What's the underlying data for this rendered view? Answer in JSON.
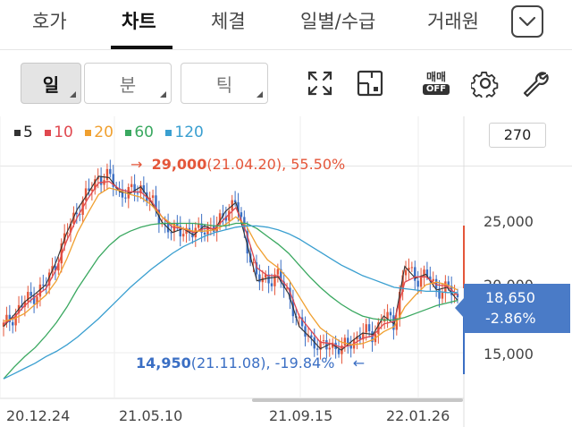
{
  "tabs": [
    {
      "label": "호가"
    },
    {
      "label": "차트"
    },
    {
      "label": "체결"
    },
    {
      "label": "일별/수급"
    },
    {
      "label": "거래원"
    }
  ],
  "toolbar": {
    "period_day": "일",
    "period_minute": "분",
    "period_tick": "틱",
    "toggle_label_top": "매매",
    "toggle_label_bottom": "OFF"
  },
  "legend": [
    {
      "label": "5",
      "color": "#333333"
    },
    {
      "label": "10",
      "color": "#e0484f"
    },
    {
      "label": "20",
      "color": "#f0a030"
    },
    {
      "label": "60",
      "color": "#3aa860"
    },
    {
      "label": "120",
      "color": "#3a9fd0"
    }
  ],
  "count_value": "270",
  "price_axis": [
    "25,000",
    "20,000",
    "15,000"
  ],
  "annotations": {
    "high_arrow": "→",
    "high_price": "29,000",
    "high_detail": "(21.04.20), 55.50%",
    "low_price": "14,950",
    "low_detail": "(21.11.08), -19.84%",
    "low_arrow": "←"
  },
  "current_price": {
    "price": "18,650",
    "change": "-2.86%"
  },
  "dates": [
    "20.12.24",
    "21.05.10",
    "21.09.15",
    "22.01.26"
  ],
  "colors": {
    "up": "#e4563a",
    "down": "#3b6fc4",
    "accent": "#4a7bc7"
  },
  "chart_data": {
    "type": "line",
    "title": "",
    "y_ticks": [
      15000,
      20000,
      25000
    ],
    "ylim": [
      12000,
      31500
    ],
    "series": [
      {
        "name": "5",
        "values": [
          17000,
          17900,
          18900,
          19500,
          20200,
          22000,
          24200,
          26000,
          27200,
          28500,
          28400,
          27300,
          27200,
          27700,
          26500,
          25000,
          24200,
          24500,
          24000,
          24700,
          24400,
          25800,
          26500,
          23500,
          20500,
          20700,
          20800,
          19500,
          17000,
          16200,
          15300,
          15700,
          15200,
          15900,
          16500,
          16400,
          17800,
          17200,
          21600,
          20700,
          21000,
          19800,
          20000,
          19000
        ]
      },
      {
        "name": "10",
        "values": [
          17200,
          17700,
          18600,
          19300,
          19900,
          21400,
          23600,
          25400,
          26800,
          28000,
          28100,
          27500,
          27300,
          27300,
          26600,
          25400,
          24600,
          24500,
          24200,
          24500,
          24500,
          25300,
          26100,
          24200,
          21500,
          20900,
          20900,
          19900,
          17800,
          16800,
          15800,
          15700,
          15400,
          15600,
          16100,
          16300,
          17200,
          17400,
          20400,
          20800,
          20800,
          20200,
          20100,
          19400
        ]
      },
      {
        "name": "20",
        "values": [
          17400,
          17600,
          18000,
          18700,
          19400,
          20500,
          22200,
          24200,
          25700,
          27100,
          27600,
          27400,
          27100,
          26900,
          26300,
          25400,
          24800,
          24500,
          24300,
          24300,
          24400,
          24800,
          25400,
          24700,
          23200,
          22100,
          21500,
          20600,
          19300,
          18000,
          16900,
          16300,
          15800,
          15600,
          15700,
          16000,
          16600,
          17000,
          18500,
          19400,
          20200,
          20400,
          20200,
          19800
        ]
      },
      {
        "name": "60",
        "values": [
          13000,
          13900,
          14700,
          15400,
          16300,
          17300,
          18500,
          19900,
          21100,
          22300,
          23200,
          23900,
          24300,
          24600,
          24800,
          24900,
          24900,
          24900,
          24900,
          24800,
          24700,
          24700,
          24900,
          24900,
          24500,
          23900,
          23300,
          22600,
          21700,
          20800,
          20000,
          19300,
          18700,
          18200,
          17800,
          17600,
          17500,
          17500,
          17700,
          18000,
          18300,
          18600,
          18800,
          19000
        ]
      },
      {
        "name": "120",
        "values": [
          13000,
          13400,
          13800,
          14200,
          14700,
          15100,
          15600,
          16200,
          16900,
          17600,
          18400,
          19200,
          20000,
          20700,
          21400,
          22000,
          22600,
          23100,
          23500,
          23900,
          24200,
          24400,
          24600,
          24700,
          24700,
          24600,
          24400,
          24100,
          23700,
          23200,
          22700,
          22200,
          21700,
          21300,
          20900,
          20600,
          20300,
          20000,
          19900,
          19800,
          19700,
          19700,
          19600,
          19600
        ]
      }
    ],
    "high": {
      "price": 29000,
      "date": "21.04.20"
    },
    "low": {
      "price": 14950,
      "date": "21.11.08"
    },
    "last": 18650
  }
}
